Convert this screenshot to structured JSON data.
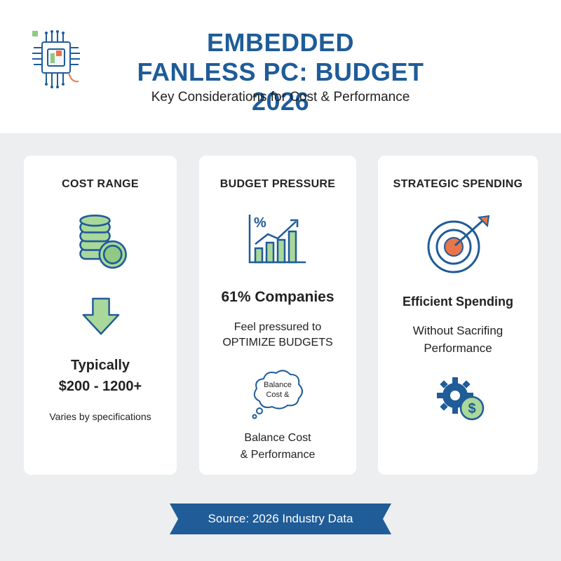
{
  "header": {
    "title_line1": "EMBEDDED",
    "title_line2": "FANLESS PC: BUDGET 2026",
    "subtitle": "Key Considerations for Cost & Performance"
  },
  "cards": [
    {
      "title": "COST RANGE",
      "label": "Typically",
      "value": "$200 - 1200+",
      "note": "Varies by specifications"
    },
    {
      "title": "BUDGET PRESSURE",
      "chart_symbol": "%",
      "stat": "61% Companies",
      "line1": "Feel pressured to",
      "line2": "OPTIMIZE BUDGETS",
      "bubble_line1": "Balance",
      "bubble_line2": "Cost &",
      "caption_line1": "Balance Cost",
      "caption_line2": "& Performance"
    },
    {
      "title": "STRATEGIC SPENDING",
      "stat": "Efficient Spending",
      "line1": "Without Sacrifing",
      "line2": "Performance",
      "coin_symbol": "$"
    }
  ],
  "footer": {
    "source": "Source: 2026 Industry Data"
  },
  "colors": {
    "blue": "#1f5c98",
    "green": "#8fc983",
    "orange": "#e8764a"
  },
  "icons": [
    "chip-icon",
    "coin-stack-icon",
    "down-arrow-icon",
    "bar-chart-icon",
    "thought-bubble-icon",
    "target-icon",
    "gear-dollar-icon"
  ]
}
